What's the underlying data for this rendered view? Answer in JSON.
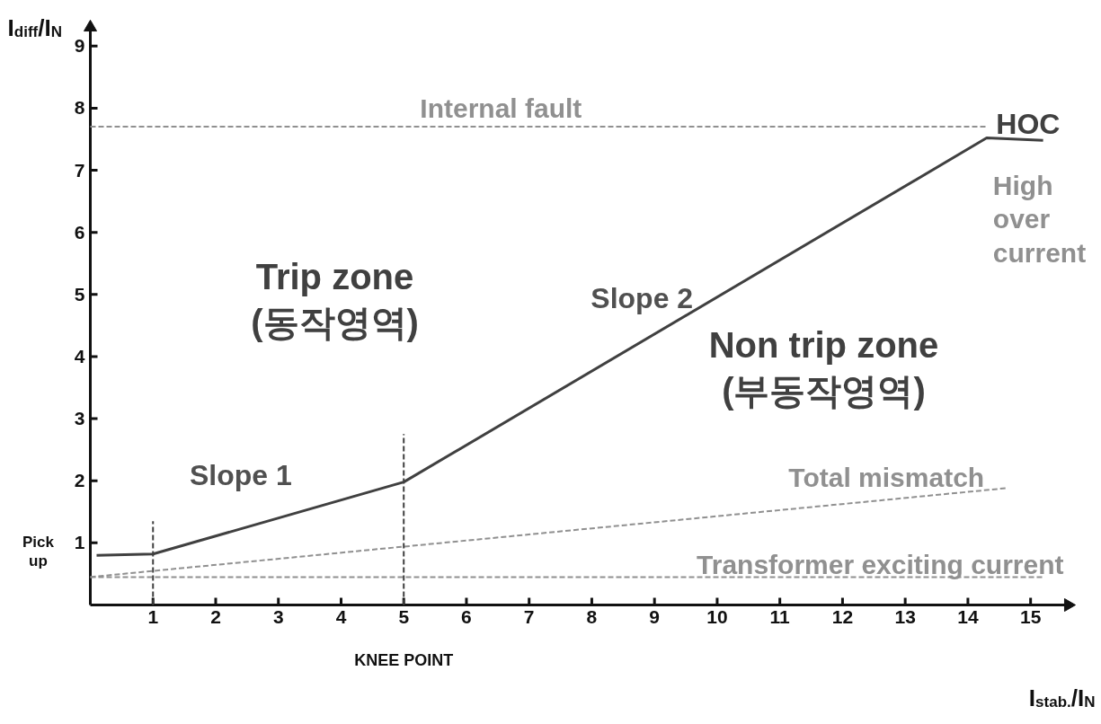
{
  "chart_data": {
    "type": "line",
    "xlabel": "I$_{stab.}$/I$_{N}$",
    "ylabel": "I$_{diff}$/I$_{N}$",
    "xlim": [
      0,
      15.6
    ],
    "ylim": [
      0,
      9.3
    ],
    "xticks": [
      1,
      2,
      3,
      4,
      5,
      6,
      7,
      8,
      9,
      10,
      11,
      12,
      13,
      14,
      15
    ],
    "yticks": [
      1,
      2,
      3,
      4,
      5,
      6,
      7,
      8,
      9
    ],
    "grid": false,
    "series": [
      {
        "color": "#404040",
        "line_style": "solid",
        "x": [
          0.1,
          1,
          5,
          14.3,
          15.2
        ],
        "values": [
          0.8,
          0.82,
          1.98,
          7.52,
          7.48
        ]
      },
      {
        "name": "Internal fault",
        "color": "#909090",
        "line_style": "dashed",
        "x": [
          0,
          14.3
        ],
        "values": [
          7.7,
          7.7
        ]
      },
      {
        "name": "Total mismatch",
        "color": "#909090",
        "line_style": "dashed",
        "x": [
          0,
          14.6
        ],
        "values": [
          0.45,
          1.88
        ]
      },
      {
        "name": "Transformer exciting current",
        "color": "#909090",
        "line_style": "dashed",
        "x": [
          0,
          15.2
        ],
        "values": [
          0.45,
          0.45
        ]
      },
      {
        "color": "#404040",
        "line_style": "dashed",
        "x": [
          1,
          1
        ],
        "values": [
          0,
          1.35
        ]
      },
      {
        "color": "#404040",
        "line_style": "dashed",
        "x": [
          5,
          5
        ],
        "values": [
          0,
          2.75
        ]
      }
    ],
    "annotations": [
      "HOC",
      "High\nover\ncurrent",
      "Trip zone\n(동작영역)",
      "Slope 2",
      "Non trip zone\n(부동작영역)",
      "Slope 1",
      "Pick\nup",
      "KNEE POINT"
    ]
  }
}
